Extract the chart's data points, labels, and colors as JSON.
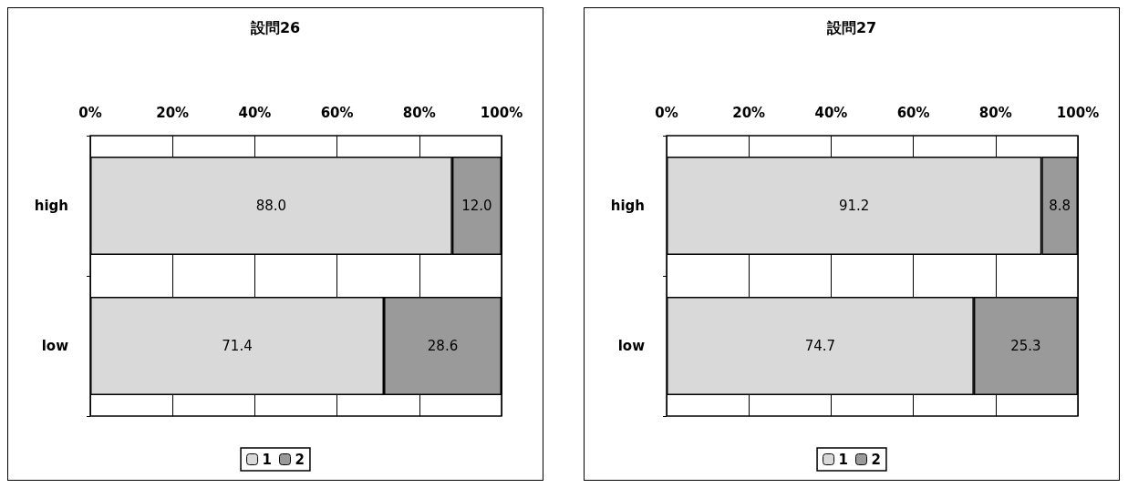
{
  "chart_data": [
    {
      "type": "bar",
      "title": "設問26",
      "orientation": "horizontal",
      "stacked": true,
      "categories": [
        "high",
        "low"
      ],
      "xlim": [
        0,
        100
      ],
      "xticks": [
        {
          "value": 0,
          "label": "0%"
        },
        {
          "value": 20,
          "label": "20%"
        },
        {
          "value": 40,
          "label": "40%"
        },
        {
          "value": 60,
          "label": "60%"
        },
        {
          "value": 80,
          "label": "80%"
        },
        {
          "value": 100,
          "label": "100%"
        }
      ],
      "grid": "x",
      "legend": "bottom",
      "series": [
        {
          "name": "1",
          "color": "#d9d9d9",
          "values": [
            88.0,
            71.4
          ],
          "value_labels": [
            "88.0",
            "71.4"
          ]
        },
        {
          "name": "2",
          "color": "#9a9a9a",
          "values": [
            12.0,
            28.6
          ],
          "value_labels": [
            "12.0",
            "28.6"
          ]
        }
      ]
    },
    {
      "type": "bar",
      "title": "設問27",
      "orientation": "horizontal",
      "stacked": true,
      "categories": [
        "high",
        "low"
      ],
      "xlim": [
        0,
        100
      ],
      "xticks": [
        {
          "value": 0,
          "label": "0%"
        },
        {
          "value": 20,
          "label": "20%"
        },
        {
          "value": 40,
          "label": "40%"
        },
        {
          "value": 60,
          "label": "60%"
        },
        {
          "value": 80,
          "label": "80%"
        },
        {
          "value": 100,
          "label": "100%"
        }
      ],
      "grid": "x",
      "legend": "bottom",
      "series": [
        {
          "name": "1",
          "color": "#d9d9d9",
          "values": [
            91.2,
            74.7
          ],
          "value_labels": [
            "91.2",
            "74.7"
          ]
        },
        {
          "name": "2",
          "color": "#9a9a9a",
          "values": [
            8.8,
            25.3
          ],
          "value_labels": [
            "8.8",
            "25.3"
          ]
        }
      ]
    }
  ]
}
